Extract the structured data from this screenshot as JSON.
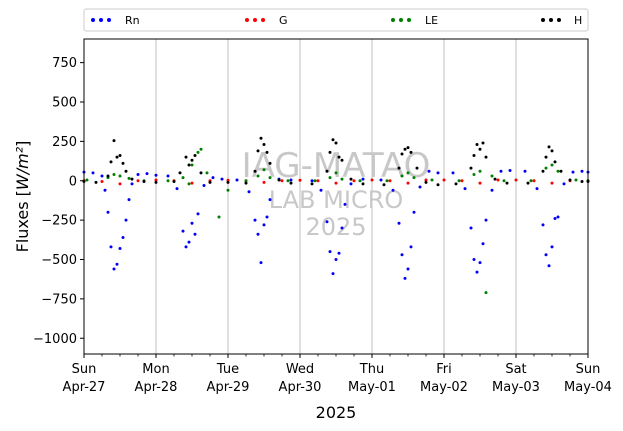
{
  "chart_data": {
    "type": "scatter",
    "title": "",
    "xlabel": "2025",
    "ylabel": "Fluxes [W/m²]",
    "ylim": [
      -1100,
      900
    ],
    "xlim": [
      "2025-04-27",
      "2025-05-04"
    ],
    "grid": "vertical",
    "legend": "top",
    "yticks": [
      750,
      500,
      250,
      0,
      -250,
      -500,
      -750,
      -1000
    ],
    "xticks": [
      {
        "date": "2025-04-27",
        "day": "Sun",
        "label": "Apr-27"
      },
      {
        "date": "2025-04-28",
        "day": "Mon",
        "label": "Apr-28"
      },
      {
        "date": "2025-04-29",
        "day": "Tue",
        "label": "Apr-29"
      },
      {
        "date": "2025-04-30",
        "day": "Wed",
        "label": "Apr-30"
      },
      {
        "date": "2025-05-01",
        "day": "Thu",
        "label": "May-01"
      },
      {
        "date": "2025-05-02",
        "day": "Fri",
        "label": "May-02"
      },
      {
        "date": "2025-05-03",
        "day": "Sat",
        "label": "May-03"
      },
      {
        "date": "2025-05-04",
        "day": "Sun",
        "label": "May-04"
      }
    ],
    "watermark": [
      "IAG-MATAO",
      "LAB MICRO",
      "2025"
    ],
    "series": [
      {
        "name": "Rn",
        "color": "#0000ff",
        "points": [
          [
            "2025-04-27 00:00",
            55
          ],
          [
            "2025-04-27 03:00",
            50
          ],
          [
            "2025-04-27 06:00",
            30
          ],
          [
            "2025-04-27 07:00",
            -60
          ],
          [
            "2025-04-27 08:00",
            -200
          ],
          [
            "2025-04-27 09:00",
            -420
          ],
          [
            "2025-04-27 10:00",
            -560
          ],
          [
            "2025-04-27 11:00",
            -530
          ],
          [
            "2025-04-27 12:00",
            -430
          ],
          [
            "2025-04-27 13:00",
            -360
          ],
          [
            "2025-04-27 14:00",
            -250
          ],
          [
            "2025-04-27 15:00",
            -120
          ],
          [
            "2025-04-27 16:00",
            -20
          ],
          [
            "2025-04-27 18:00",
            40
          ],
          [
            "2025-04-27 21:00",
            45
          ],
          [
            "2025-04-28 00:00",
            35
          ],
          [
            "2025-04-28 04:00",
            30
          ],
          [
            "2025-04-28 07:00",
            -50
          ],
          [
            "2025-04-28 09:00",
            -320
          ],
          [
            "2025-04-28 10:00",
            -420
          ],
          [
            "2025-04-28 11:00",
            -390
          ],
          [
            "2025-04-28 12:00",
            -270
          ],
          [
            "2025-04-28 13:00",
            -340
          ],
          [
            "2025-04-28 14:00",
            -210
          ],
          [
            "2025-04-28 16:00",
            -30
          ],
          [
            "2025-04-28 19:00",
            20
          ],
          [
            "2025-04-28 22:00",
            10
          ],
          [
            "2025-04-29 03:00",
            5
          ],
          [
            "2025-04-29 07:00",
            -70
          ],
          [
            "2025-04-29 09:00",
            -250
          ],
          [
            "2025-04-29 10:00",
            -340
          ],
          [
            "2025-04-29 11:00",
            -520
          ],
          [
            "2025-04-29 12:00",
            -280
          ],
          [
            "2025-04-29 13:00",
            -230
          ],
          [
            "2025-04-29 14:00",
            -120
          ],
          [
            "2025-04-29 17:00",
            10
          ],
          [
            "2025-04-29 21:00",
            5
          ],
          [
            "2025-04-30 04:00",
            0
          ],
          [
            "2025-04-30 07:00",
            -60
          ],
          [
            "2025-04-30 09:00",
            -260
          ],
          [
            "2025-04-30 10:00",
            -450
          ],
          [
            "2025-04-30 11:00",
            -590
          ],
          [
            "2025-04-30 12:00",
            -500
          ],
          [
            "2025-04-30 13:00",
            -460
          ],
          [
            "2025-04-30 14:00",
            -300
          ],
          [
            "2025-04-30 15:00",
            -150
          ],
          [
            "2025-04-30 17:00",
            -20
          ],
          [
            "2025-04-30 21:00",
            10
          ],
          [
            "2025-05-01 03:00",
            5
          ],
          [
            "2025-05-01 07:00",
            -60
          ],
          [
            "2025-05-01 09:00",
            -270
          ],
          [
            "2025-05-01 10:00",
            -470
          ],
          [
            "2025-05-01 11:00",
            -620
          ],
          [
            "2025-05-01 12:00",
            -560
          ],
          [
            "2025-05-01 13:00",
            -420
          ],
          [
            "2025-05-01 14:00",
            -200
          ],
          [
            "2025-05-01 16:00",
            -40
          ],
          [
            "2025-05-01 19:00",
            60
          ],
          [
            "2025-05-01 22:00",
            50
          ],
          [
            "2025-05-02 03:00",
            50
          ],
          [
            "2025-05-02 07:00",
            -50
          ],
          [
            "2025-05-02 09:00",
            -300
          ],
          [
            "2025-05-02 10:00",
            -500
          ],
          [
            "2025-05-02 11:00",
            -580
          ],
          [
            "2025-05-02 12:00",
            -520
          ],
          [
            "2025-05-02 13:00",
            -400
          ],
          [
            "2025-05-02 14:00",
            -250
          ],
          [
            "2025-05-02 16:00",
            -60
          ],
          [
            "2025-05-02 19:00",
            60
          ],
          [
            "2025-05-02 22:00",
            65
          ],
          [
            "2025-05-03 03:00",
            60
          ],
          [
            "2025-05-03 07:00",
            -50
          ],
          [
            "2025-05-03 09:00",
            -280
          ],
          [
            "2025-05-03 10:00",
            -470
          ],
          [
            "2025-05-03 11:00",
            -540
          ],
          [
            "2025-05-03 12:00",
            -420
          ],
          [
            "2025-05-03 13:00",
            -240
          ],
          [
            "2025-05-03 14:00",
            -230
          ],
          [
            "2025-05-03 16:00",
            -20
          ],
          [
            "2025-05-03 19:00",
            55
          ],
          [
            "2025-05-03 22:00",
            60
          ],
          [
            "2025-05-04 00:00",
            55
          ]
        ]
      },
      {
        "name": "G",
        "color": "#ff0000",
        "points": [
          [
            "2025-04-27 00:00",
            0
          ],
          [
            "2025-04-27 06:00",
            -5
          ],
          [
            "2025-04-27 12:00",
            -20
          ],
          [
            "2025-04-27 18:00",
            0
          ],
          [
            "2025-04-28 00:00",
            5
          ],
          [
            "2025-04-28 06:00",
            0
          ],
          [
            "2025-04-28 12:00",
            -15
          ],
          [
            "2025-04-28 18:00",
            0
          ],
          [
            "2025-04-29 00:00",
            3
          ],
          [
            "2025-04-29 06:00",
            0
          ],
          [
            "2025-04-29 12:00",
            -10
          ],
          [
            "2025-04-29 18:00",
            0
          ],
          [
            "2025-04-30 00:00",
            3
          ],
          [
            "2025-04-30 06:00",
            0
          ],
          [
            "2025-04-30 12:00",
            -15
          ],
          [
            "2025-04-30 18:00",
            0
          ],
          [
            "2025-05-01 00:00",
            5
          ],
          [
            "2025-05-01 06:00",
            0
          ],
          [
            "2025-05-01 12:00",
            -15
          ],
          [
            "2025-05-01 18:00",
            5
          ],
          [
            "2025-05-02 00:00",
            5
          ],
          [
            "2025-05-02 06:00",
            0
          ],
          [
            "2025-05-02 12:00",
            -15
          ],
          [
            "2025-05-02 18:00",
            5
          ],
          [
            "2025-05-03 00:00",
            5
          ],
          [
            "2025-05-03 06:00",
            0
          ],
          [
            "2025-05-03 12:00",
            -15
          ],
          [
            "2025-05-03 18:00",
            0
          ],
          [
            "2025-05-04 00:00",
            0
          ]
        ]
      },
      {
        "name": "LE",
        "color": "#008000",
        "points": [
          [
            "2025-04-27 01:00",
            5
          ],
          [
            "2025-04-27 08:00",
            20
          ],
          [
            "2025-04-27 10:00",
            40
          ],
          [
            "2025-04-27 12:00",
            30
          ],
          [
            "2025-04-27 15:00",
            15
          ],
          [
            "2025-04-27 20:00",
            0
          ],
          [
            "2025-04-28 04:00",
            0
          ],
          [
            "2025-04-28 09:00",
            20
          ],
          [
            "2025-04-28 11:00",
            -20
          ],
          [
            "2025-04-28 12:00",
            100
          ],
          [
            "2025-04-28 14:00",
            180
          ],
          [
            "2025-04-28 15:00",
            200
          ],
          [
            "2025-04-28 17:00",
            50
          ],
          [
            "2025-04-28 21:00",
            -230
          ],
          [
            "2025-04-29 00:00",
            -60
          ],
          [
            "2025-04-29 06:00",
            0
          ],
          [
            "2025-04-29 10:00",
            30
          ],
          [
            "2025-04-29 12:00",
            70
          ],
          [
            "2025-04-29 14:00",
            20
          ],
          [
            "2025-04-29 20:00",
            0
          ],
          [
            "2025-04-30 05:00",
            0
          ],
          [
            "2025-04-30 10:00",
            20
          ],
          [
            "2025-04-30 12:00",
            50
          ],
          [
            "2025-04-30 14:00",
            10
          ],
          [
            "2025-04-30 20:00",
            0
          ],
          [
            "2025-05-01 05:00",
            0
          ],
          [
            "2025-05-01 10:00",
            30
          ],
          [
            "2025-05-01 12:00",
            50
          ],
          [
            "2025-05-01 14:00",
            20
          ],
          [
            "2025-05-01 20:00",
            5
          ],
          [
            "2025-05-02 05:00",
            0
          ],
          [
            "2025-05-02 10:00",
            40
          ],
          [
            "2025-05-02 12:00",
            60
          ],
          [
            "2025-05-02 14:00",
            -710
          ],
          [
            "2025-05-02 16:00",
            30
          ],
          [
            "2025-05-02 20:00",
            0
          ],
          [
            "2025-05-03 05:00",
            0
          ],
          [
            "2025-05-03 10:00",
            80
          ],
          [
            "2025-05-03 12:00",
            100
          ],
          [
            "2025-05-03 14:00",
            60
          ],
          [
            "2025-05-03 20:00",
            5
          ],
          [
            "2025-05-04 00:00",
            0
          ]
        ]
      },
      {
        "name": "H",
        "color": "#000000",
        "points": [
          [
            "2025-04-27 00:00",
            -5
          ],
          [
            "2025-04-27 04:00",
            -10
          ],
          [
            "2025-04-27 08:00",
            30
          ],
          [
            "2025-04-27 09:00",
            120
          ],
          [
            "2025-04-27 10:00",
            255
          ],
          [
            "2025-04-27 11:00",
            150
          ],
          [
            "2025-04-27 12:00",
            160
          ],
          [
            "2025-04-27 13:00",
            110
          ],
          [
            "2025-04-27 14:00",
            60
          ],
          [
            "2025-04-27 16:00",
            10
          ],
          [
            "2025-04-27 20:00",
            -5
          ],
          [
            "2025-04-28 00:00",
            -10
          ],
          [
            "2025-04-28 06:00",
            -5
          ],
          [
            "2025-04-28 08:00",
            50
          ],
          [
            "2025-04-28 10:00",
            150
          ],
          [
            "2025-04-28 11:00",
            100
          ],
          [
            "2025-04-28 12:00",
            130
          ],
          [
            "2025-04-28 13:00",
            160
          ],
          [
            "2025-04-28 15:00",
            50
          ],
          [
            "2025-04-28 18:00",
            -10
          ],
          [
            "2025-04-29 00:00",
            -10
          ],
          [
            "2025-04-29 06:00",
            -15
          ],
          [
            "2025-04-29 09:00",
            60
          ],
          [
            "2025-04-29 10:00",
            190
          ],
          [
            "2025-04-29 11:00",
            270
          ],
          [
            "2025-04-29 12:00",
            230
          ],
          [
            "2025-04-29 13:00",
            180
          ],
          [
            "2025-04-29 14:00",
            110
          ],
          [
            "2025-04-29 17:00",
            5
          ],
          [
            "2025-04-29 21:00",
            -15
          ],
          [
            "2025-04-30 04:00",
            -20
          ],
          [
            "2025-04-30 09:00",
            60
          ],
          [
            "2025-04-30 10:00",
            180
          ],
          [
            "2025-04-30 11:00",
            260
          ],
          [
            "2025-04-30 12:00",
            240
          ],
          [
            "2025-04-30 13:00",
            150
          ],
          [
            "2025-04-30 14:00",
            130
          ],
          [
            "2025-04-30 17:00",
            10
          ],
          [
            "2025-04-30 21:00",
            -20
          ],
          [
            "2025-05-01 04:00",
            -25
          ],
          [
            "2025-05-01 09:00",
            80
          ],
          [
            "2025-05-01 10:00",
            170
          ],
          [
            "2025-05-01 11:00",
            200
          ],
          [
            "2025-05-01 12:00",
            210
          ],
          [
            "2025-05-01 13:00",
            180
          ],
          [
            "2025-05-01 15:00",
            80
          ],
          [
            "2025-05-01 18:00",
            -10
          ],
          [
            "2025-05-01 22:00",
            -25
          ],
          [
            "2025-05-02 04:00",
            -20
          ],
          [
            "2025-05-02 09:00",
            80
          ],
          [
            "2025-05-02 10:00",
            160
          ],
          [
            "2025-05-02 11:00",
            230
          ],
          [
            "2025-05-02 12:00",
            200
          ],
          [
            "2025-05-02 13:00",
            240
          ],
          [
            "2025-05-02 14:00",
            150
          ],
          [
            "2025-05-02 17:00",
            10
          ],
          [
            "2025-05-02 21:00",
            -15
          ],
          [
            "2025-05-03 04:00",
            -15
          ],
          [
            "2025-05-03 09:00",
            60
          ],
          [
            "2025-05-03 10:00",
            150
          ],
          [
            "2025-05-03 11:00",
            215
          ],
          [
            "2025-05-03 12:00",
            190
          ],
          [
            "2025-05-03 13:00",
            120
          ],
          [
            "2025-05-03 15:00",
            60
          ],
          [
            "2025-05-03 18:00",
            5
          ],
          [
            "2025-05-03 22:00",
            -5
          ],
          [
            "2025-05-04 00:00",
            -5
          ]
        ]
      }
    ]
  }
}
